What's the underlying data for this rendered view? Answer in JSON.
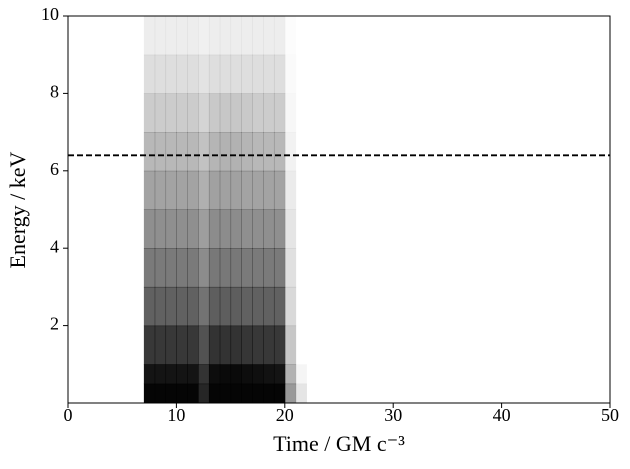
{
  "chart_data": {
    "type": "heatmap",
    "xlabel": "Time / GM c⁻³",
    "ylabel": "Energy / keV",
    "xlim": [
      0,
      50
    ],
    "ylim": [
      0,
      10
    ],
    "xticks": [
      0,
      10,
      20,
      30,
      40,
      50
    ],
    "yticks": [
      2,
      4,
      6,
      8,
      10
    ],
    "xbins": [
      7,
      8,
      9,
      10,
      11,
      12,
      13,
      14,
      15,
      16,
      17,
      18,
      19,
      20,
      21,
      22
    ],
    "ybins": [
      0,
      0.5,
      1,
      2,
      3,
      4,
      5,
      6,
      7,
      8,
      9,
      10
    ],
    "zlim": [
      0,
      100
    ],
    "color": "#000000",
    "z": [
      [
        98,
        98,
        98,
        98,
        98,
        85,
        98,
        98,
        98,
        98,
        98,
        98,
        98,
        40,
        10
      ],
      [
        92,
        92,
        92,
        92,
        92,
        80,
        95,
        96,
        96,
        95,
        94,
        93,
        92,
        30,
        4
      ],
      [
        78,
        78,
        78,
        78,
        78,
        68,
        80,
        80,
        80,
        79,
        78,
        78,
        78,
        22,
        0
      ],
      [
        62,
        62,
        62,
        62,
        62,
        55,
        63,
        63,
        63,
        62,
        62,
        62,
        62,
        15,
        0
      ],
      [
        52,
        52,
        52,
        52,
        52,
        45,
        53,
        53,
        53,
        52,
        52,
        52,
        52,
        12,
        0
      ],
      [
        44,
        44,
        44,
        44,
        44,
        38,
        45,
        45,
        45,
        44,
        44,
        44,
        44,
        10,
        0
      ],
      [
        36,
        36,
        36,
        36,
        36,
        31,
        37,
        37,
        37,
        36,
        36,
        36,
        36,
        8,
        0
      ],
      [
        28,
        28,
        28,
        28,
        28,
        24,
        29,
        30,
        30,
        29,
        28,
        28,
        28,
        5,
        0
      ],
      [
        20,
        20,
        20,
        20,
        20,
        17,
        21,
        22,
        22,
        21,
        20,
        20,
        20,
        3,
        0
      ],
      [
        13,
        13,
        13,
        13,
        13,
        11,
        13,
        13,
        13,
        13,
        13,
        13,
        13,
        2,
        0
      ],
      [
        7,
        7,
        7,
        7,
        7,
        6,
        7,
        7,
        7,
        7,
        7,
        7,
        7,
        1,
        0
      ]
    ],
    "hline": 6.4,
    "hline_style": "dashed"
  }
}
